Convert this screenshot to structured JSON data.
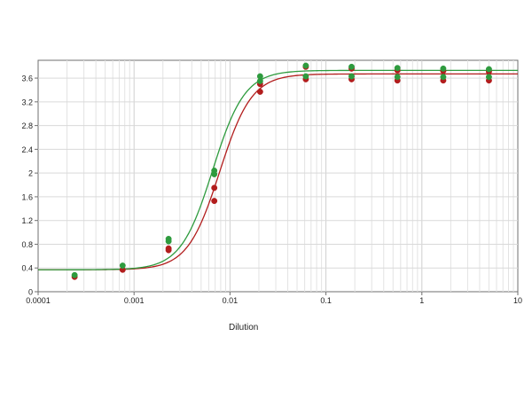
{
  "chart_data": {
    "type": "scatter",
    "xlabel": "Dilution",
    "ylabel": "",
    "xscale": "log",
    "xlim": [
      0.0001,
      10
    ],
    "ylim": [
      0,
      3.9
    ],
    "x_ticks": [
      {
        "value": 0.0001,
        "label": "0.0001"
      },
      {
        "value": 0.001,
        "label": "0.001"
      },
      {
        "value": 0.01,
        "label": "0.01"
      },
      {
        "value": 0.1,
        "label": "0.1"
      },
      {
        "value": 1,
        "label": "1"
      },
      {
        "value": 10,
        "label": "10"
      }
    ],
    "y_ticks": [
      {
        "value": 0,
        "label": "0"
      },
      {
        "value": 0.4,
        "label": "0.4"
      },
      {
        "value": 0.8,
        "label": "0.8"
      },
      {
        "value": 1.2,
        "label": "1.2"
      },
      {
        "value": 1.6,
        "label": "1.6"
      },
      {
        "value": 2,
        "label": "2"
      },
      {
        "value": 2.4,
        "label": "2.4"
      },
      {
        "value": 2.8,
        "label": "2.8"
      },
      {
        "value": 3.2,
        "label": "3.2"
      },
      {
        "value": 3.6,
        "label": "3.6"
      }
    ],
    "grid": true,
    "series": [
      {
        "color": "#b21d1d",
        "points": [
          {
            "x": 0.00024,
            "y": 0.25
          },
          {
            "x": 0.00076,
            "y": 0.37
          },
          {
            "x": 0.00229,
            "y": 0.7
          },
          {
            "x": 0.00229,
            "y": 0.73
          },
          {
            "x": 0.00686,
            "y": 1.53
          },
          {
            "x": 0.00686,
            "y": 1.75
          },
          {
            "x": 0.0206,
            "y": 3.37
          },
          {
            "x": 0.0206,
            "y": 3.5
          },
          {
            "x": 0.0617,
            "y": 3.58
          },
          {
            "x": 0.0617,
            "y": 3.79
          },
          {
            "x": 0.185,
            "y": 3.58
          },
          {
            "x": 0.185,
            "y": 3.76
          },
          {
            "x": 0.556,
            "y": 3.56
          },
          {
            "x": 0.556,
            "y": 3.73
          },
          {
            "x": 1.67,
            "y": 3.56
          },
          {
            "x": 1.67,
            "y": 3.72
          },
          {
            "x": 5.0,
            "y": 3.56
          },
          {
            "x": 5.0,
            "y": 3.71
          }
        ],
        "fit": {
          "bottom": 0.37,
          "top": 3.67,
          "ec50": 0.0078,
          "hill": 2.6
        }
      },
      {
        "color": "#2e9b3e",
        "points": [
          {
            "x": 0.00024,
            "y": 0.28
          },
          {
            "x": 0.00076,
            "y": 0.44
          },
          {
            "x": 0.00229,
            "y": 0.85
          },
          {
            "x": 0.00229,
            "y": 0.89
          },
          {
            "x": 0.00686,
            "y": 1.98
          },
          {
            "x": 0.00686,
            "y": 2.04
          },
          {
            "x": 0.0206,
            "y": 3.55
          },
          {
            "x": 0.0206,
            "y": 3.63
          },
          {
            "x": 0.0617,
            "y": 3.63
          },
          {
            "x": 0.0617,
            "y": 3.81
          },
          {
            "x": 0.185,
            "y": 3.63
          },
          {
            "x": 0.185,
            "y": 3.79
          },
          {
            "x": 0.556,
            "y": 3.62
          },
          {
            "x": 0.556,
            "y": 3.77
          },
          {
            "x": 1.67,
            "y": 3.62
          },
          {
            "x": 1.67,
            "y": 3.76
          },
          {
            "x": 5.0,
            "y": 3.62
          },
          {
            "x": 5.0,
            "y": 3.75
          }
        ],
        "fit": {
          "bottom": 0.37,
          "top": 3.73,
          "ec50": 0.0066,
          "hill": 2.6
        }
      }
    ]
  }
}
